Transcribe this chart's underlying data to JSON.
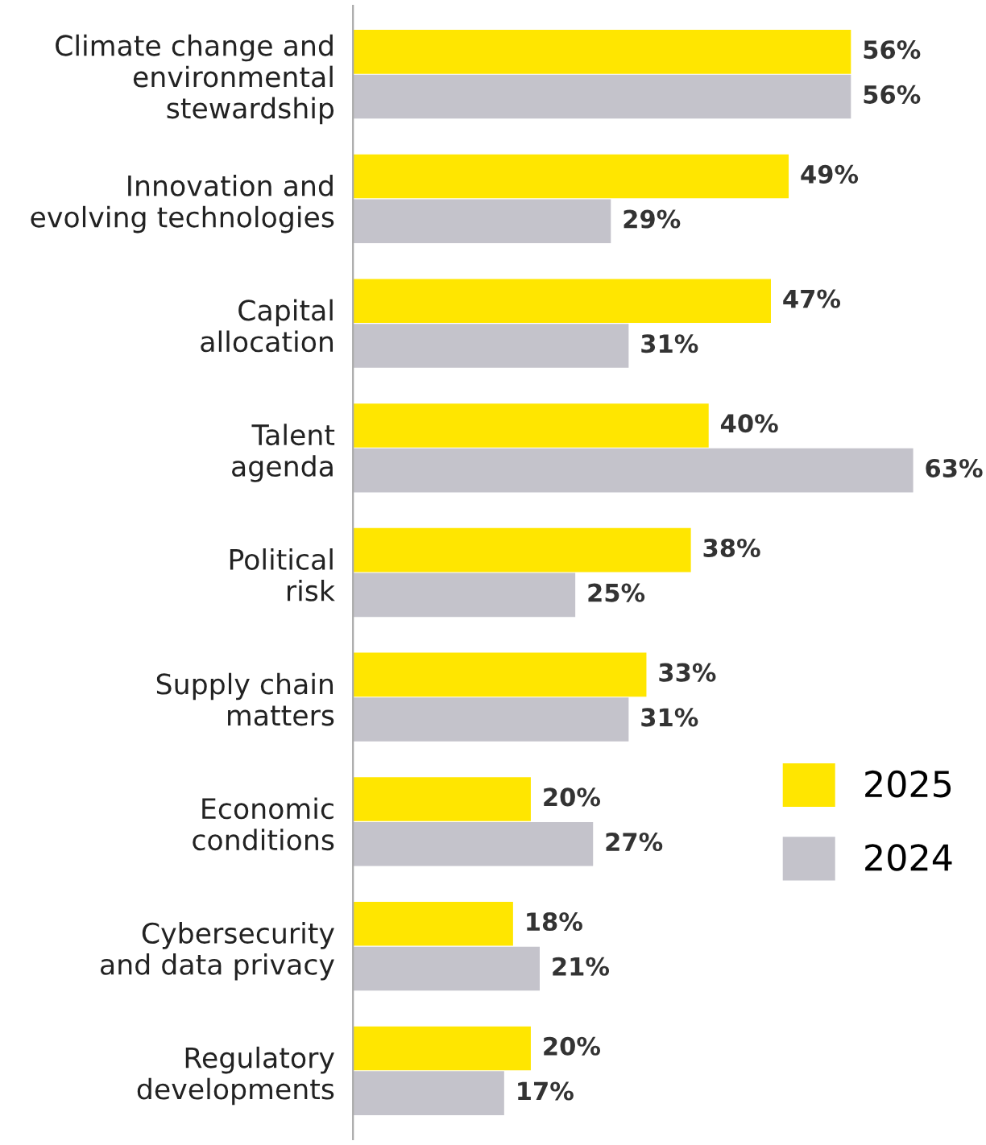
{
  "chart_data": {
    "type": "bar",
    "orientation": "horizontal",
    "categories": [
      "Climate change and\nenvironmental\nstewardship",
      "Innovation and\nevolving technologies",
      "Capital\nallocation",
      "Talent\nagenda",
      "Political\nrisk",
      "Supply chain\nmatters",
      "Economic\nconditions",
      "Cybersecurity\nand data privacy",
      "Regulatory\ndevelopments"
    ],
    "series": [
      {
        "name": "2025",
        "color": "#ffe600",
        "values": [
          56,
          49,
          47,
          40,
          38,
          33,
          20,
          18,
          20
        ],
        "value_labels": [
          "56%",
          "49%",
          "47%",
          "40%",
          "38%",
          "33%",
          "20%",
          "18%",
          "20%"
        ]
      },
      {
        "name": "2024",
        "color": "#c4c3cb",
        "values": [
          56,
          29,
          31,
          63,
          25,
          31,
          27,
          21,
          17
        ],
        "value_labels": [
          "56%",
          "29%",
          "31%",
          "63%",
          "25%",
          "31%",
          "27%",
          "21%",
          "17%"
        ]
      }
    ],
    "legend": "right",
    "tick_labels": "y",
    "grid": false
  }
}
